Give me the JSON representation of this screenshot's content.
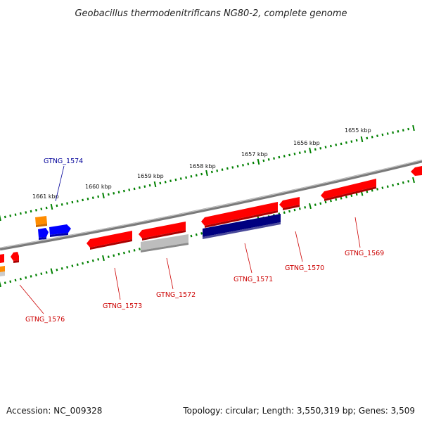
{
  "header": {
    "title": "Geobacillus thermodenitrificans NG80-2, complete genome"
  },
  "ruler": {
    "ticks": [
      "1655 kbp",
      "1656 kbp",
      "1657 kbp",
      "1658 kbp",
      "1659 kbp",
      "1660 kbp",
      "1661 kbp"
    ]
  },
  "genes": [
    {
      "id": "GTNG_1569",
      "strand": "-",
      "color": "#ff0000"
    },
    {
      "id": "GTNG_1570",
      "strand": "-",
      "color": "#ff0000"
    },
    {
      "id": "GTNG_1571",
      "strand": "-",
      "color": "#ff0000"
    },
    {
      "id": "GTNG_1572",
      "strand": "-",
      "color": "#aaaaaa"
    },
    {
      "id": "GTNG_1573",
      "strand": "-",
      "color": "#ff0000"
    },
    {
      "id": "GTNG_1574",
      "strand": "+",
      "color": "#0000ff"
    },
    {
      "id": "GTNG_1576",
      "strand": "-",
      "color": "#ff0000"
    }
  ],
  "colors": {
    "backbone": "#808080",
    "ruler_dots": "#008000",
    "forward_gene": "#0000ff",
    "reverse_gene": "#ff0000",
    "navy_gene": "#000080",
    "orange_gene": "#ff8c00",
    "gray_gene": "#aaaaaa"
  },
  "footer": {
    "accession": "Accession: NC_009328",
    "summary": "Topology: circular; Length: 3,550,319 bp; Genes: 3,509"
  }
}
